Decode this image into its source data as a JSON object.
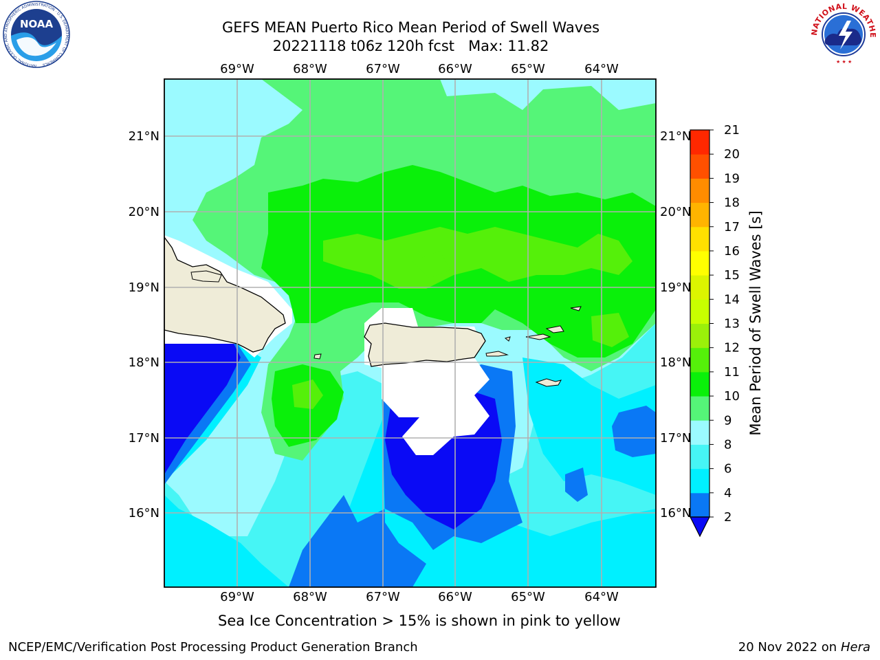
{
  "title": {
    "line1": "GEFS MEAN Puerto Rico Mean Period of Swell Waves",
    "line2": "20221118 t06z 120h fcst   Max: 11.82"
  },
  "axes": {
    "lon_labels": [
      "69°W",
      "68°W",
      "67°W",
      "66°W",
      "65°W",
      "64°W"
    ],
    "lat_labels": [
      "21°N",
      "20°N",
      "19°N",
      "18°N",
      "17°N",
      "16°N"
    ]
  },
  "colorbar": {
    "label": "Mean Period of Swell Waves [s]",
    "ticks": [
      "2",
      "4",
      "6",
      "8",
      "9",
      "10",
      "11",
      "12",
      "13",
      "14",
      "15",
      "16",
      "17",
      "18",
      "19",
      "20",
      "21"
    ],
    "colors": [
      "#0a0af5",
      "#0a78f5",
      "#00f0ff",
      "#46f5f5",
      "#9bfaff",
      "#55f578",
      "#0af00a",
      "#55f00a",
      "#9bf00a",
      "#c8ff00",
      "#dcf500",
      "#ffff00",
      "#ffe000",
      "#ffb400",
      "#ff8c00",
      "#ff5000",
      "#ff2800",
      "#ff0000"
    ]
  },
  "note": "Sea Ice Concentration > 15% is shown in pink to yellow",
  "footer": {
    "left": "NCEP/EMC/Verification Post Processing Product Generation Branch",
    "date": "20 Nov 2022 on",
    "machine": "Hera"
  },
  "logos": {
    "noaa": "NOAA",
    "noaa_ring": "NATIONAL OCEANIC AND ATMOSPHERIC ADMINISTRATION · U.S. DEPARTMENT OF COMMERCE",
    "nws_ring": "NATIONAL WEATHER SERVICE"
  }
}
